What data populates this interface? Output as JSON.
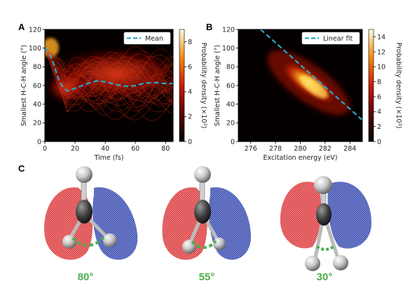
{
  "panel_labels": {
    "a": "A",
    "b": "B",
    "c": "C"
  },
  "colorbar_a": {
    "label": "Probability density (×10",
    "exp": "3",
    "close": ")",
    "ticks": [
      "0",
      "2",
      "4",
      "6",
      "8"
    ]
  },
  "colorbar_b": {
    "label": "Probability density (×10",
    "exp": "3",
    "close": ")",
    "ticks": [
      "0",
      "2",
      "4",
      "6",
      "8",
      "10",
      "12",
      "14"
    ]
  },
  "panel_c": {
    "angles": [
      "80°",
      "55°",
      "30°"
    ]
  },
  "colors": {
    "mean_line": "#2aa7c9",
    "angle_text": "#4cae4c",
    "lobe_red": "#d8282c",
    "lobe_blue": "#2b3fa8"
  },
  "chart_data": [
    {
      "type": "heatmap",
      "panel": "A",
      "xlabel": "Time (fs)",
      "ylabel": "Smallest H-C-H angle (°)",
      "xlim": [
        0,
        85
      ],
      "ylim": [
        0,
        120
      ],
      "xticks": [
        "0",
        "20",
        "40",
        "60",
        "80"
      ],
      "yticks": [
        "0",
        "20",
        "40",
        "60",
        "80",
        "100",
        "120"
      ],
      "legend": {
        "entries": [
          "Mean"
        ],
        "position": "top-right"
      },
      "colorbar_range": [
        0,
        9
      ],
      "series": [
        {
          "name": "Mean",
          "style": "dashed",
          "x": [
            0,
            3,
            6,
            9,
            12,
            15,
            20,
            25,
            30,
            35,
            40,
            45,
            50,
            55,
            60,
            65,
            70,
            75,
            80,
            85
          ],
          "y": [
            100,
            95,
            82,
            67,
            58,
            54,
            57,
            60,
            63,
            65,
            64,
            62,
            60,
            59,
            60,
            62,
            63,
            63,
            62,
            62
          ]
        }
      ]
    },
    {
      "type": "heatmap",
      "panel": "B",
      "xlabel": "Excitation energy (eV)",
      "ylabel": "Smallest H-C-H angle (°)",
      "xlim": [
        275,
        285
      ],
      "ylim": [
        0,
        120
      ],
      "xticks": [
        "276",
        "278",
        "280",
        "282",
        "284"
      ],
      "yticks": [
        "0",
        "20",
        "40",
        "60",
        "80",
        "100",
        "120"
      ],
      "legend": {
        "entries": [
          "Linear fit"
        ],
        "position": "top-right"
      },
      "colorbar_range": [
        0,
        15
      ],
      "series": [
        {
          "name": "Linear fit",
          "style": "dashed",
          "x": [
            276.8,
            285
          ],
          "y": [
            120,
            23
          ]
        }
      ]
    }
  ]
}
